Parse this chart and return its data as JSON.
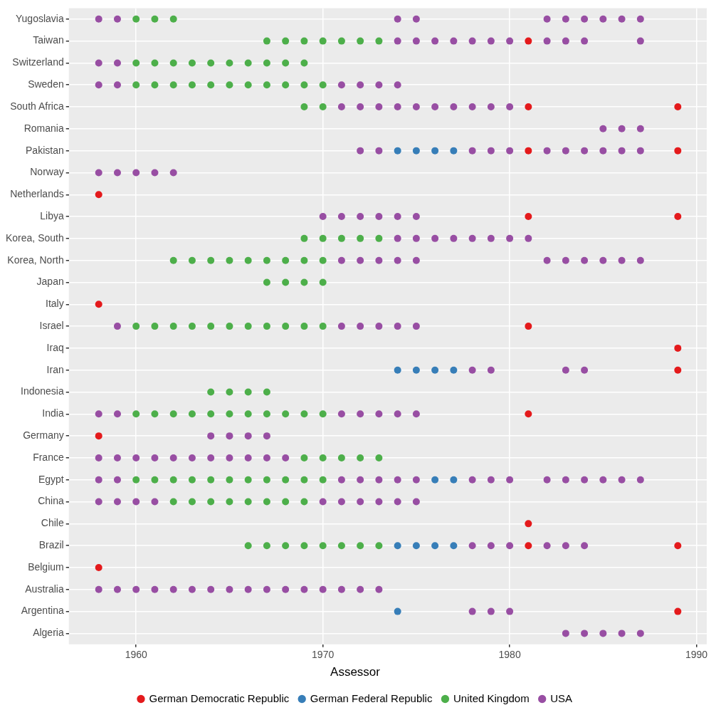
{
  "chart_data": {
    "type": "scatter",
    "legend_title": "Assessor",
    "legend": "bottom",
    "grid": true,
    "marker": "circle",
    "xlim": [
      1956.4,
      1990.55
    ],
    "xticks": [
      1960,
      1970,
      1980,
      1990
    ],
    "orientation": "horizontal",
    "categories": [
      "Yugoslavia",
      "Taiwan",
      "Switzerland",
      "Sweden",
      "South Africa",
      "Romania",
      "Pakistan",
      "Norway",
      "Netherlands",
      "Libya",
      "Korea, South",
      "Korea, North",
      "Japan",
      "Italy",
      "Israel",
      "Iraq",
      "Iran",
      "Indonesia",
      "India",
      "Germany",
      "France",
      "Egypt",
      "China",
      "Chile",
      "Brazil",
      "Belgium",
      "Australia",
      "Argentina",
      "Algeria"
    ],
    "series": [
      {
        "name": "German Democratic Republic",
        "color": "#e41a1c",
        "values": [
          1981,
          1981,
          1989,
          1981,
          1989,
          1958,
          1981,
          1989,
          1958,
          1981,
          1989,
          1989,
          1981,
          1958,
          1981,
          1981,
          1989,
          1958,
          1989
        ],
        "x": [
          "Taiwan",
          "South Africa",
          "South Africa",
          "Pakistan",
          "Pakistan",
          "Netherlands",
          "Libya",
          "Libya",
          "Italy",
          "Israel",
          "Iraq",
          "Iran",
          "India",
          "Germany",
          "Chile",
          "Brazil",
          "Brazil",
          "Belgium",
          "Argentina"
        ]
      },
      {
        "name": "German Federal Republic",
        "color": "#377eb8",
        "values": [
          1974,
          1975,
          1976,
          1977,
          1974,
          1975,
          1976,
          1977,
          1976,
          1977,
          1974,
          1975,
          1976,
          1977,
          1974
        ],
        "x": [
          "Pakistan",
          "Pakistan",
          "Pakistan",
          "Pakistan",
          "Iran",
          "Iran",
          "Iran",
          "Iran",
          "Egypt",
          "Egypt",
          "Brazil",
          "Brazil",
          "Brazil",
          "Brazil",
          "Argentina"
        ]
      },
      {
        "name": "United Kingdom",
        "color": "#4daf4a",
        "values": [
          1960,
          1961,
          1962,
          1967,
          1968,
          1969,
          1970,
          1971,
          1972,
          1973,
          1960,
          1961,
          1962,
          1963,
          1964,
          1965,
          1966,
          1967,
          1968,
          1969,
          1960,
          1961,
          1962,
          1963,
          1964,
          1965,
          1966,
          1967,
          1968,
          1969,
          1970,
          1969,
          1970,
          1969,
          1970,
          1971,
          1972,
          1973,
          1962,
          1963,
          1964,
          1965,
          1966,
          1967,
          1968,
          1969,
          1970,
          1967,
          1968,
          1969,
          1970,
          1960,
          1961,
          1962,
          1963,
          1964,
          1965,
          1966,
          1967,
          1968,
          1969,
          1970,
          1964,
          1965,
          1966,
          1967,
          1960,
          1961,
          1962,
          1963,
          1964,
          1965,
          1966,
          1967,
          1968,
          1969,
          1970,
          1969,
          1970,
          1971,
          1972,
          1973,
          1960,
          1961,
          1962,
          1963,
          1964,
          1965,
          1966,
          1967,
          1968,
          1969,
          1970,
          1962,
          1963,
          1964,
          1965,
          1966,
          1967,
          1968,
          1969,
          1966,
          1967,
          1968,
          1969,
          1970,
          1971,
          1972,
          1973
        ],
        "x": [
          "Yugoslavia",
          "Yugoslavia",
          "Yugoslavia",
          "Taiwan",
          "Taiwan",
          "Taiwan",
          "Taiwan",
          "Taiwan",
          "Taiwan",
          "Taiwan",
          "Switzerland",
          "Switzerland",
          "Switzerland",
          "Switzerland",
          "Switzerland",
          "Switzerland",
          "Switzerland",
          "Switzerland",
          "Switzerland",
          "Switzerland",
          "Sweden",
          "Sweden",
          "Sweden",
          "Sweden",
          "Sweden",
          "Sweden",
          "Sweden",
          "Sweden",
          "Sweden",
          "Sweden",
          "Sweden",
          "South Africa",
          "South Africa",
          "Korea, South",
          "Korea, South",
          "Korea, South",
          "Korea, South",
          "Korea, South",
          "Korea, North",
          "Korea, North",
          "Korea, North",
          "Korea, North",
          "Korea, North",
          "Korea, North",
          "Korea, North",
          "Korea, North",
          "Korea, North",
          "Japan",
          "Japan",
          "Japan",
          "Japan",
          "Israel",
          "Israel",
          "Israel",
          "Israel",
          "Israel",
          "Israel",
          "Israel",
          "Israel",
          "Israel",
          "Israel",
          "Israel",
          "Indonesia",
          "Indonesia",
          "Indonesia",
          "Indonesia",
          "India",
          "India",
          "India",
          "India",
          "India",
          "India",
          "India",
          "India",
          "India",
          "India",
          "India",
          "France",
          "France",
          "France",
          "France",
          "France",
          "Egypt",
          "Egypt",
          "Egypt",
          "Egypt",
          "Egypt",
          "Egypt",
          "Egypt",
          "Egypt",
          "Egypt",
          "Egypt",
          "Egypt",
          "China",
          "China",
          "China",
          "China",
          "China",
          "China",
          "China",
          "China",
          "Brazil",
          "Brazil",
          "Brazil",
          "Brazil",
          "Brazil",
          "Brazil",
          "Brazil",
          "Brazil"
        ]
      },
      {
        "name": "USA",
        "color": "#984ea3",
        "values": [
          1958,
          1959,
          1974,
          1975,
          1982,
          1983,
          1984,
          1985,
          1986,
          1987,
          1974,
          1975,
          1976,
          1977,
          1978,
          1979,
          1980,
          1982,
          1983,
          1984,
          1987,
          1958,
          1959,
          1958,
          1959,
          1971,
          1972,
          1973,
          1974,
          1971,
          1972,
          1973,
          1974,
          1975,
          1976,
          1977,
          1978,
          1979,
          1980,
          1985,
          1986,
          1987,
          1972,
          1973,
          1978,
          1979,
          1980,
          1982,
          1983,
          1984,
          1985,
          1986,
          1987,
          1958,
          1959,
          1960,
          1961,
          1962,
          1970,
          1971,
          1972,
          1973,
          1974,
          1975,
          1974,
          1975,
          1976,
          1977,
          1978,
          1979,
          1980,
          1981,
          1971,
          1972,
          1973,
          1974,
          1975,
          1982,
          1983,
          1984,
          1985,
          1986,
          1987,
          1959,
          1971,
          1972,
          1973,
          1974,
          1975,
          1978,
          1979,
          1983,
          1984,
          1958,
          1959,
          1971,
          1972,
          1973,
          1974,
          1975,
          1964,
          1965,
          1966,
          1967,
          1958,
          1959,
          1960,
          1961,
          1962,
          1963,
          1964,
          1965,
          1966,
          1967,
          1968,
          1958,
          1959,
          1971,
          1972,
          1973,
          1974,
          1975,
          1978,
          1979,
          1980,
          1982,
          1983,
          1984,
          1985,
          1986,
          1987,
          1958,
          1959,
          1960,
          1961,
          1970,
          1971,
          1972,
          1973,
          1974,
          1975,
          1978,
          1979,
          1980,
          1982,
          1983,
          1984,
          1958,
          1959,
          1960,
          1961,
          1962,
          1963,
          1964,
          1965,
          1966,
          1967,
          1968,
          1969,
          1970,
          1971,
          1972,
          1973,
          1978,
          1979,
          1980,
          1983,
          1984,
          1985,
          1986,
          1987
        ],
        "x": [
          "Yugoslavia",
          "Yugoslavia",
          "Yugoslavia",
          "Yugoslavia",
          "Yugoslavia",
          "Yugoslavia",
          "Yugoslavia",
          "Yugoslavia",
          "Yugoslavia",
          "Yugoslavia",
          "Taiwan",
          "Taiwan",
          "Taiwan",
          "Taiwan",
          "Taiwan",
          "Taiwan",
          "Taiwan",
          "Taiwan",
          "Taiwan",
          "Taiwan",
          "Taiwan",
          "Switzerland",
          "Switzerland",
          "Sweden",
          "Sweden",
          "Sweden",
          "Sweden",
          "Sweden",
          "Sweden",
          "South Africa",
          "South Africa",
          "South Africa",
          "South Africa",
          "South Africa",
          "South Africa",
          "South Africa",
          "South Africa",
          "South Africa",
          "South Africa",
          "Romania",
          "Romania",
          "Romania",
          "Pakistan",
          "Pakistan",
          "Pakistan",
          "Pakistan",
          "Pakistan",
          "Pakistan",
          "Pakistan",
          "Pakistan",
          "Pakistan",
          "Pakistan",
          "Pakistan",
          "Norway",
          "Norway",
          "Norway",
          "Norway",
          "Norway",
          "Libya",
          "Libya",
          "Libya",
          "Libya",
          "Libya",
          "Libya",
          "Korea, South",
          "Korea, South",
          "Korea, South",
          "Korea, South",
          "Korea, South",
          "Korea, South",
          "Korea, South",
          "Korea, South",
          "Korea, North",
          "Korea, North",
          "Korea, North",
          "Korea, North",
          "Korea, North",
          "Korea, North",
          "Korea, North",
          "Korea, North",
          "Korea, North",
          "Korea, North",
          "Korea, North",
          "Israel",
          "Israel",
          "Israel",
          "Israel",
          "Israel",
          "Israel",
          "Iran",
          "Iran",
          "Iran",
          "Iran",
          "India",
          "India",
          "India",
          "India",
          "India",
          "India",
          "India",
          "Germany",
          "Germany",
          "Germany",
          "Germany",
          "France",
          "France",
          "France",
          "France",
          "France",
          "France",
          "France",
          "France",
          "France",
          "France",
          "France",
          "Egypt",
          "Egypt",
          "Egypt",
          "Egypt",
          "Egypt",
          "Egypt",
          "Egypt",
          "Egypt",
          "Egypt",
          "Egypt",
          "Egypt",
          "Egypt",
          "Egypt",
          "Egypt",
          "Egypt",
          "Egypt",
          "China",
          "China",
          "China",
          "China",
          "China",
          "China",
          "China",
          "China",
          "China",
          "China",
          "Brazil",
          "Brazil",
          "Brazil",
          "Brazil",
          "Brazil",
          "Brazil",
          "Australia",
          "Australia",
          "Australia",
          "Australia",
          "Australia",
          "Australia",
          "Australia",
          "Australia",
          "Australia",
          "Australia",
          "Australia",
          "Australia",
          "Australia",
          "Australia",
          "Australia",
          "Australia",
          "Argentina",
          "Argentina",
          "Argentina",
          "Algeria",
          "Algeria",
          "Algeria",
          "Algeria",
          "Algeria"
        ]
      }
    ]
  }
}
